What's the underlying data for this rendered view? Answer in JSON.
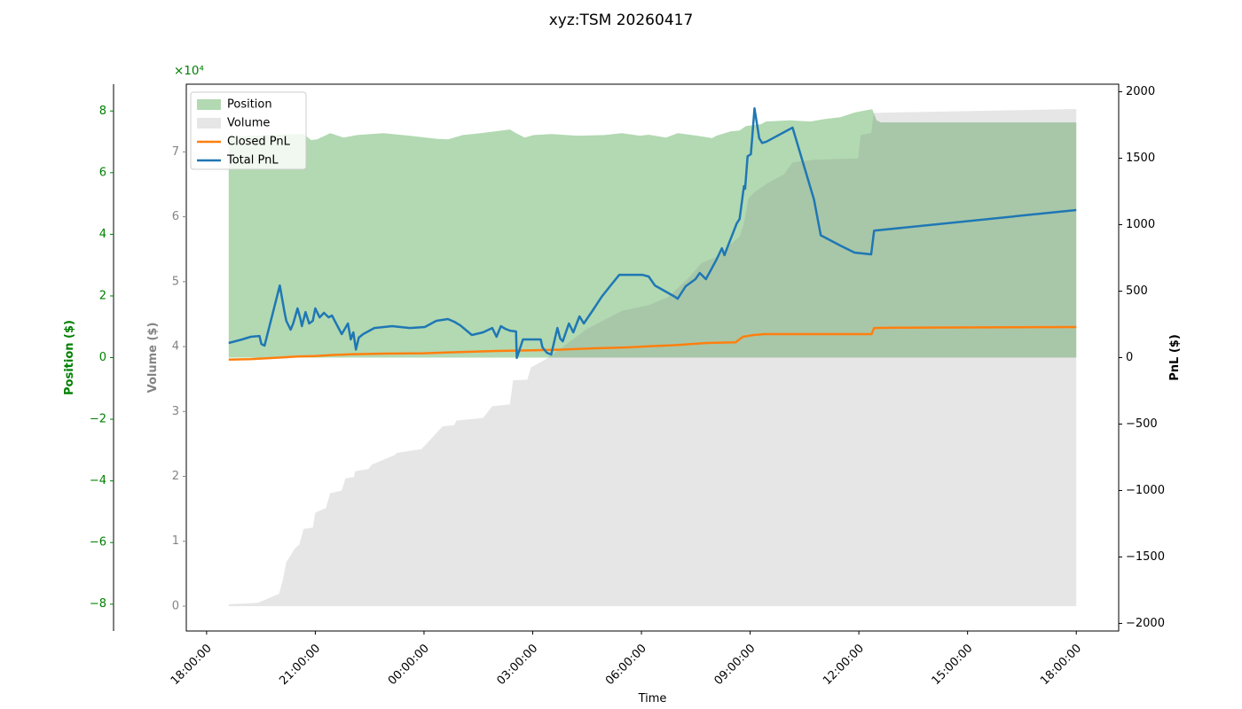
{
  "title": "xyz:TSM 20260417",
  "chart_data": {
    "type": "area",
    "title": "xyz:TSM 20260417",
    "xlabel": "Time",
    "x_axis": {
      "label": "Time",
      "unit": "hours after 18:00:00",
      "xlim": [
        -0.56,
        25.17
      ],
      "ticks": [
        {
          "t": 0,
          "label": "18:00:00"
        },
        {
          "t": 3,
          "label": "21:00:00"
        },
        {
          "t": 6,
          "label": "00:00:00"
        },
        {
          "t": 9,
          "label": "03:00:00"
        },
        {
          "t": 12,
          "label": "06:00:00"
        },
        {
          "t": 15,
          "label": "09:00:00"
        },
        {
          "t": 18,
          "label": "12:00:00"
        },
        {
          "t": 21,
          "label": "15:00:00"
        },
        {
          "t": 24,
          "label": "18:00:00"
        }
      ]
    },
    "y_axes": {
      "position": {
        "label": "Position ($)",
        "color": "#008000",
        "side": "outer-left",
        "offset_text": "×10⁴",
        "ylim": [
          -88700,
          88700
        ],
        "tick_values": [
          -80000,
          -60000,
          -40000,
          -20000,
          0,
          20000,
          40000,
          60000,
          80000
        ],
        "tick_divisor": 10000
      },
      "volume": {
        "label": "Volume ($)",
        "color": "#848484",
        "side": "left",
        "ylim": [
          -3830,
          80430
        ],
        "tick_values": [
          0,
          10000,
          20000,
          30000,
          40000,
          50000,
          60000,
          70000
        ],
        "tick_divisor": 10000
      },
      "pnl": {
        "label": "PnL ($)",
        "color": "#000000",
        "side": "right",
        "ylim": [
          -2057,
          2057
        ],
        "tick_values": [
          -2000,
          -1500,
          -1000,
          -500,
          0,
          500,
          1000,
          1500,
          2000
        ],
        "tick_divisor": 1
      }
    },
    "legend": {
      "location": "upper left",
      "entries": [
        {
          "label": "Position",
          "type": "patch",
          "series": "position"
        },
        {
          "label": "Volume",
          "type": "patch",
          "series": "volume"
        },
        {
          "label": "Closed PnL",
          "type": "line",
          "series": "closed_pnl"
        },
        {
          "label": "Total PnL",
          "type": "line",
          "series": "total_pnl"
        }
      ]
    },
    "series": [
      {
        "id": "position",
        "name": "Position",
        "kind": "area",
        "axis": "position",
        "fill": "rgba(0,128,0,0.30)",
        "points": [
          [
            0.61,
            71400
          ],
          [
            1.0,
            71800
          ],
          [
            1.7,
            72200
          ],
          [
            2.4,
            72500
          ],
          [
            2.68,
            72500
          ],
          [
            2.88,
            70600
          ],
          [
            3.05,
            70800
          ],
          [
            3.41,
            72800
          ],
          [
            3.78,
            71400
          ],
          [
            4.15,
            72200
          ],
          [
            4.88,
            72800
          ],
          [
            5.6,
            72000
          ],
          [
            6.34,
            71000
          ],
          [
            6.66,
            70800
          ],
          [
            7.07,
            72200
          ],
          [
            7.56,
            72800
          ],
          [
            8.37,
            74000
          ],
          [
            8.54,
            72800
          ],
          [
            8.78,
            71400
          ],
          [
            9.02,
            72200
          ],
          [
            9.51,
            72500
          ],
          [
            10.24,
            72000
          ],
          [
            10.98,
            72200
          ],
          [
            11.46,
            72800
          ],
          [
            11.95,
            72000
          ],
          [
            12.2,
            72300
          ],
          [
            12.68,
            71400
          ],
          [
            13.0,
            72800
          ],
          [
            13.54,
            72000
          ],
          [
            13.95,
            71200
          ],
          [
            14.07,
            72000
          ],
          [
            14.46,
            73400
          ],
          [
            14.71,
            73700
          ],
          [
            14.88,
            75100
          ],
          [
            15.29,
            75700
          ],
          [
            15.44,
            76600
          ],
          [
            16.1,
            77000
          ],
          [
            16.66,
            76600
          ],
          [
            17.07,
            77400
          ],
          [
            17.49,
            78000
          ],
          [
            17.88,
            79500
          ],
          [
            18.22,
            80300
          ],
          [
            18.37,
            80600
          ],
          [
            18.49,
            77000
          ],
          [
            18.61,
            76300
          ],
          [
            24.0,
            76300
          ]
        ]
      },
      {
        "id": "volume",
        "name": "Volume",
        "kind": "area",
        "axis": "volume",
        "fill": "rgba(128,128,128,0.20)",
        "points": [
          [
            0.61,
            300
          ],
          [
            1.41,
            500
          ],
          [
            2.0,
            1900
          ],
          [
            2.1,
            4000
          ],
          [
            2.2,
            6800
          ],
          [
            2.32,
            7800
          ],
          [
            2.44,
            8900
          ],
          [
            2.56,
            9500
          ],
          [
            2.68,
            11900
          ],
          [
            2.93,
            12100
          ],
          [
            3.0,
            14400
          ],
          [
            3.12,
            14700
          ],
          [
            3.29,
            15100
          ],
          [
            3.41,
            17400
          ],
          [
            3.73,
            17800
          ],
          [
            3.83,
            19700
          ],
          [
            4.07,
            19900
          ],
          [
            4.1,
            20800
          ],
          [
            4.46,
            21100
          ],
          [
            4.56,
            21800
          ],
          [
            5.2,
            23300
          ],
          [
            5.24,
            23600
          ],
          [
            5.93,
            24200
          ],
          [
            6.1,
            25200
          ],
          [
            6.51,
            27700
          ],
          [
            6.83,
            27900
          ],
          [
            6.9,
            28600
          ],
          [
            7.63,
            29000
          ],
          [
            7.88,
            30800
          ],
          [
            8.37,
            31100
          ],
          [
            8.46,
            34800
          ],
          [
            8.85,
            34900
          ],
          [
            8.95,
            36800
          ],
          [
            9.32,
            37900
          ],
          [
            9.51,
            38600
          ],
          [
            10.49,
            42700
          ],
          [
            11.46,
            45500
          ],
          [
            12.2,
            46400
          ],
          [
            12.73,
            47600
          ],
          [
            13.0,
            49000
          ],
          [
            13.29,
            50500
          ],
          [
            13.66,
            52900
          ],
          [
            14.07,
            53800
          ],
          [
            14.63,
            56600
          ],
          [
            14.71,
            57000
          ],
          [
            14.83,
            59000
          ],
          [
            14.95,
            62800
          ],
          [
            15.12,
            63800
          ],
          [
            15.54,
            65400
          ],
          [
            15.93,
            66500
          ],
          [
            16.17,
            68400
          ],
          [
            16.78,
            68800
          ],
          [
            17.98,
            69000
          ],
          [
            18.05,
            72600
          ],
          [
            18.34,
            72900
          ],
          [
            18.41,
            76000
          ],
          [
            24.0,
            76600
          ]
        ]
      },
      {
        "id": "closed_pnl",
        "name": "Closed PnL",
        "kind": "line",
        "axis": "pnl",
        "color": "#ff7f0e",
        "width": 2.5,
        "points": [
          [
            0.61,
            -15
          ],
          [
            1.2,
            -12
          ],
          [
            2.0,
            0
          ],
          [
            2.5,
            8
          ],
          [
            3.0,
            12
          ],
          [
            3.5,
            20
          ],
          [
            4.0,
            25
          ],
          [
            4.9,
            30
          ],
          [
            6.0,
            33
          ],
          [
            7.0,
            42
          ],
          [
            8.0,
            50
          ],
          [
            9.0,
            55
          ],
          [
            9.8,
            60
          ],
          [
            10.7,
            70
          ],
          [
            11.6,
            77
          ],
          [
            12.2,
            85
          ],
          [
            13.0,
            95
          ],
          [
            13.8,
            110
          ],
          [
            14.6,
            115
          ],
          [
            14.8,
            157
          ],
          [
            15.1,
            170
          ],
          [
            15.4,
            177
          ],
          [
            18.35,
            177
          ],
          [
            18.42,
            223
          ],
          [
            19.0,
            225
          ],
          [
            24.0,
            230
          ]
        ]
      },
      {
        "id": "total_pnl",
        "name": "Total PnL",
        "kind": "line",
        "axis": "pnl",
        "color": "#1f77b4",
        "width": 2.5,
        "points": [
          [
            0.61,
            110
          ],
          [
            0.98,
            137
          ],
          [
            1.22,
            157
          ],
          [
            1.46,
            163
          ],
          [
            1.51,
            103
          ],
          [
            1.6,
            90
          ],
          [
            2.02,
            543
          ],
          [
            2.15,
            343
          ],
          [
            2.2,
            277
          ],
          [
            2.32,
            210
          ],
          [
            2.39,
            257
          ],
          [
            2.51,
            370
          ],
          [
            2.59,
            290
          ],
          [
            2.63,
            237
          ],
          [
            2.73,
            343
          ],
          [
            2.83,
            257
          ],
          [
            2.93,
            277
          ],
          [
            3.0,
            370
          ],
          [
            3.12,
            303
          ],
          [
            3.24,
            337
          ],
          [
            3.37,
            303
          ],
          [
            3.46,
            317
          ],
          [
            3.73,
            177
          ],
          [
            3.9,
            257
          ],
          [
            3.98,
            137
          ],
          [
            4.05,
            190
          ],
          [
            4.12,
            60
          ],
          [
            4.2,
            150
          ],
          [
            4.32,
            177
          ],
          [
            4.63,
            223
          ],
          [
            5.12,
            237
          ],
          [
            5.61,
            223
          ],
          [
            6.02,
            230
          ],
          [
            6.34,
            277
          ],
          [
            6.66,
            290
          ],
          [
            6.83,
            270
          ],
          [
            7.0,
            243
          ],
          [
            7.32,
            170
          ],
          [
            7.63,
            190
          ],
          [
            7.88,
            223
          ],
          [
            8.0,
            157
          ],
          [
            8.12,
            237
          ],
          [
            8.24,
            217
          ],
          [
            8.37,
            203
          ],
          [
            8.54,
            197
          ],
          [
            8.56,
            -3
          ],
          [
            8.73,
            137
          ],
          [
            9.22,
            137
          ],
          [
            9.27,
            77
          ],
          [
            9.39,
            37
          ],
          [
            9.51,
            23
          ],
          [
            9.68,
            223
          ],
          [
            9.76,
            143
          ],
          [
            9.83,
            123
          ],
          [
            10.0,
            257
          ],
          [
            10.12,
            190
          ],
          [
            10.29,
            310
          ],
          [
            10.41,
            257
          ],
          [
            10.66,
            357
          ],
          [
            10.9,
            457
          ],
          [
            11.15,
            543
          ],
          [
            11.39,
            623
          ],
          [
            12.02,
            623
          ],
          [
            12.2,
            610
          ],
          [
            12.37,
            543
          ],
          [
            12.63,
            503
          ],
          [
            12.93,
            457
          ],
          [
            13.0,
            443
          ],
          [
            13.22,
            537
          ],
          [
            13.49,
            590
          ],
          [
            13.61,
            637
          ],
          [
            13.78,
            590
          ],
          [
            14.07,
            737
          ],
          [
            14.22,
            823
          ],
          [
            14.29,
            770
          ],
          [
            14.39,
            843
          ],
          [
            14.63,
            1010
          ],
          [
            14.71,
            1043
          ],
          [
            14.83,
            1290
          ],
          [
            14.86,
            1270
          ],
          [
            14.93,
            1515
          ],
          [
            15.02,
            1530
          ],
          [
            15.12,
            1875
          ],
          [
            15.25,
            1650
          ],
          [
            15.33,
            1615
          ],
          [
            15.45,
            1625
          ],
          [
            16.17,
            1730
          ],
          [
            16.76,
            1190
          ],
          [
            16.95,
            920
          ],
          [
            17.49,
            843
          ],
          [
            17.88,
            790
          ],
          [
            18.34,
            777
          ],
          [
            18.42,
            955
          ],
          [
            24.0,
            1110
          ]
        ]
      }
    ]
  }
}
